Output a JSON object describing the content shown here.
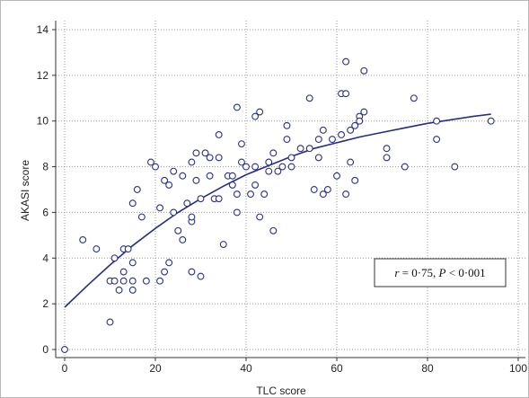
{
  "chart_data": {
    "type": "scatter",
    "title": "",
    "xlabel": "TLC score",
    "ylabel": "AKASI score",
    "xlim": [
      0,
      100
    ],
    "ylim": [
      0,
      14
    ],
    "x_ticks": [
      0,
      20,
      40,
      60,
      80,
      100
    ],
    "y_ticks": [
      0,
      2,
      4,
      6,
      8,
      10,
      12,
      14
    ],
    "x_tick_labels": [
      "0",
      "20",
      "40",
      "60",
      "80",
      "100"
    ],
    "y_tick_labels": [
      "0",
      "2",
      "4",
      "6",
      "8",
      "10",
      "12",
      "14"
    ],
    "grid": true,
    "annotation": {
      "r_symbol": "r",
      "r_text": " = 0·75, ",
      "p_symbol": "P",
      "p_text": " < 0·001"
    },
    "series": [
      {
        "points": [
          [
            0,
            0
          ],
          [
            4,
            4.8
          ],
          [
            7,
            4.4
          ],
          [
            10,
            1.2
          ],
          [
            10,
            3.0
          ],
          [
            11,
            3.0
          ],
          [
            11,
            4.0
          ],
          [
            12,
            2.6
          ],
          [
            13,
            3.0
          ],
          [
            13,
            3.4
          ],
          [
            13,
            4.4
          ],
          [
            14,
            4.4
          ],
          [
            15,
            2.6
          ],
          [
            15,
            3.0
          ],
          [
            15,
            3.8
          ],
          [
            15,
            6.4
          ],
          [
            16,
            7.0
          ],
          [
            17,
            5.8
          ],
          [
            18,
            3.0
          ],
          [
            19,
            8.2
          ],
          [
            20,
            8.0
          ],
          [
            21,
            3.0
          ],
          [
            21,
            6.2
          ],
          [
            22,
            3.4
          ],
          [
            22,
            7.4
          ],
          [
            23,
            7.2
          ],
          [
            23,
            3.8
          ],
          [
            24,
            6.0
          ],
          [
            24,
            7.8
          ],
          [
            25,
            5.2
          ],
          [
            26,
            4.8
          ],
          [
            26,
            7.6
          ],
          [
            27,
            6.4
          ],
          [
            28,
            3.4
          ],
          [
            28,
            5.6
          ],
          [
            28,
            5.8
          ],
          [
            28,
            8.2
          ],
          [
            29,
            7.4
          ],
          [
            29,
            8.6
          ],
          [
            30,
            3.2
          ],
          [
            30,
            6.6
          ],
          [
            31,
            8.6
          ],
          [
            32,
            8.4
          ],
          [
            32,
            7.6
          ],
          [
            33,
            6.6
          ],
          [
            34,
            6.6
          ],
          [
            34,
            8.4
          ],
          [
            34,
            9.4
          ],
          [
            35,
            4.6
          ],
          [
            36,
            7.6
          ],
          [
            37,
            7.2
          ],
          [
            37,
            7.6
          ],
          [
            38,
            6.0
          ],
          [
            38,
            10.6
          ],
          [
            38,
            6.8
          ],
          [
            39,
            8.2
          ],
          [
            39,
            9.0
          ],
          [
            40,
            8.0
          ],
          [
            41,
            6.8
          ],
          [
            42,
            7.2
          ],
          [
            42,
            8.0
          ],
          [
            42,
            10.2
          ],
          [
            43,
            5.8
          ],
          [
            43,
            10.4
          ],
          [
            44,
            6.8
          ],
          [
            45,
            7.8
          ],
          [
            45,
            8.2
          ],
          [
            46,
            5.2
          ],
          [
            46,
            8.6
          ],
          [
            47,
            7.8
          ],
          [
            48,
            8.0
          ],
          [
            49,
            9.2
          ],
          [
            49,
            9.8
          ],
          [
            50,
            8.0
          ],
          [
            50,
            8.4
          ],
          [
            52,
            8.8
          ],
          [
            54,
            11.0
          ],
          [
            54,
            8.8
          ],
          [
            55,
            7.0
          ],
          [
            56,
            9.2
          ],
          [
            56,
            8.4
          ],
          [
            57,
            9.6
          ],
          [
            57,
            6.8
          ],
          [
            58,
            7.0
          ],
          [
            59,
            9.2
          ],
          [
            60,
            7.6
          ],
          [
            61,
            9.4
          ],
          [
            61,
            11.2
          ],
          [
            62,
            6.8
          ],
          [
            62,
            11.2
          ],
          [
            62,
            12.6
          ],
          [
            63,
            8.2
          ],
          [
            63,
            9.6
          ],
          [
            64,
            7.4
          ],
          [
            64,
            9.8
          ],
          [
            65,
            10.2
          ],
          [
            65,
            10.0
          ],
          [
            66,
            12.2
          ],
          [
            66,
            10.4
          ],
          [
            71,
            8.4
          ],
          [
            71,
            8.8
          ],
          [
            75,
            8.0
          ],
          [
            77,
            11.0
          ],
          [
            82,
            10.0
          ],
          [
            82,
            9.2
          ],
          [
            86,
            8.0
          ],
          [
            94,
            10.0
          ]
        ]
      }
    ],
    "fit_line": [
      [
        0,
        1.85
      ],
      [
        5,
        2.8
      ],
      [
        10,
        3.7
      ],
      [
        15,
        4.55
      ],
      [
        20,
        5.3
      ],
      [
        25,
        6.0
      ],
      [
        30,
        6.6
      ],
      [
        35,
        7.15
      ],
      [
        40,
        7.65
      ],
      [
        45,
        8.05
      ],
      [
        50,
        8.45
      ],
      [
        55,
        8.8
      ],
      [
        60,
        9.05
      ],
      [
        65,
        9.3
      ],
      [
        70,
        9.5
      ],
      [
        75,
        9.7
      ],
      [
        80,
        9.9
      ],
      [
        85,
        10.05
      ],
      [
        90,
        10.2
      ],
      [
        94,
        10.3
      ]
    ]
  }
}
